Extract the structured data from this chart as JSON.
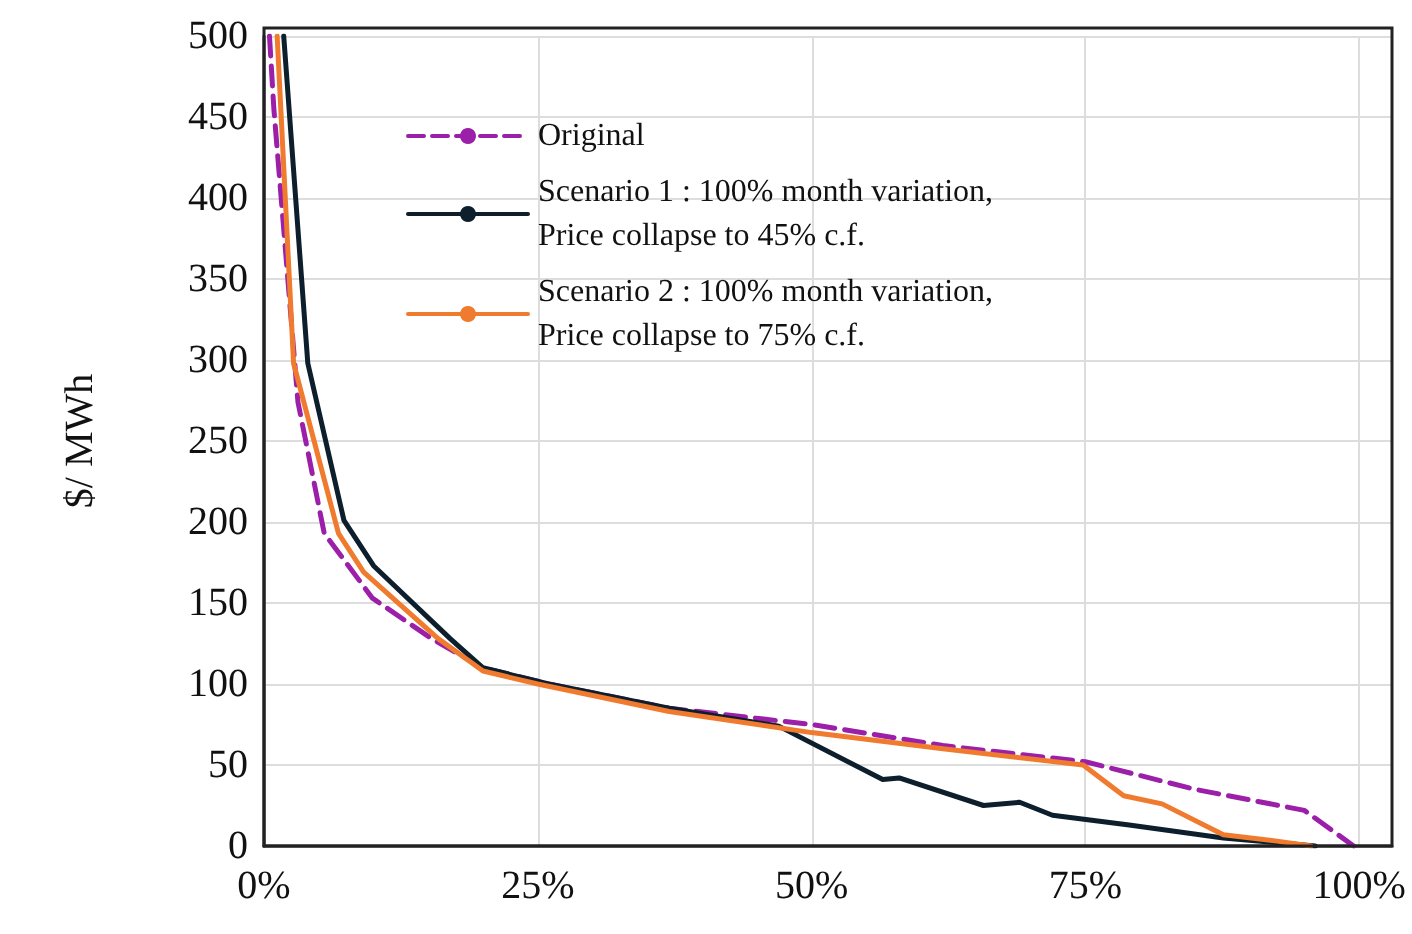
{
  "chart_data": {
    "type": "line",
    "ylabel": "$/ MWh",
    "xlim": [
      0,
      103
    ],
    "ylim": [
      0,
      500
    ],
    "xticks": [
      {
        "value": 0,
        "label": "0%"
      },
      {
        "value": 25,
        "label": "25%"
      },
      {
        "value": 50,
        "label": "50%"
      },
      {
        "value": 75,
        "label": "75%"
      },
      {
        "value": 100,
        "label": "100%"
      }
    ],
    "yticks": [
      0,
      50,
      100,
      150,
      200,
      250,
      300,
      350,
      400,
      450,
      500
    ],
    "grid": true,
    "legend": "top",
    "marker": "none",
    "series": [
      {
        "name": "Original",
        "color": "#9b1fa8",
        "line_style": "dashed",
        "x": [
          0.5,
          0.9,
          3.1,
          5.5,
          9.9,
          15.3,
          20,
          26,
          37,
          50,
          62,
          75,
          85,
          95,
          99.5
        ],
        "values": [
          500,
          455,
          274,
          193,
          153,
          128,
          110,
          100,
          85,
          75,
          62,
          52,
          35,
          22,
          0
        ]
      },
      {
        "name": "Scenario 1 : 100% month variation,\nPrice collapse to 45% c.f.",
        "color": "#0d1f2d",
        "line_style": "solid",
        "x": [
          1.8,
          4,
          7.3,
          10,
          17,
          20,
          26,
          37,
          47,
          56.5,
          58,
          65.7,
          69,
          72,
          79,
          87.6,
          96
        ],
        "values": [
          500,
          298,
          201,
          173,
          128,
          110,
          100,
          85,
          74,
          41,
          42,
          25,
          27,
          19,
          13,
          5,
          0
        ]
      },
      {
        "name": "Scenario 2 : 100% month variation,\nPrice collapse to 75% c.f.",
        "color": "#f07a2e",
        "line_style": "solid",
        "x": [
          1.2,
          2.7,
          6.8,
          9.1,
          15.9,
          20,
          25,
          37,
          50,
          62,
          74.8,
          78.5,
          82,
          87.6,
          92.5,
          95.6
        ],
        "values": [
          500,
          298,
          193,
          169,
          128,
          108,
          100,
          83,
          70,
          60,
          50,
          31,
          26,
          7,
          3,
          0
        ]
      }
    ]
  }
}
